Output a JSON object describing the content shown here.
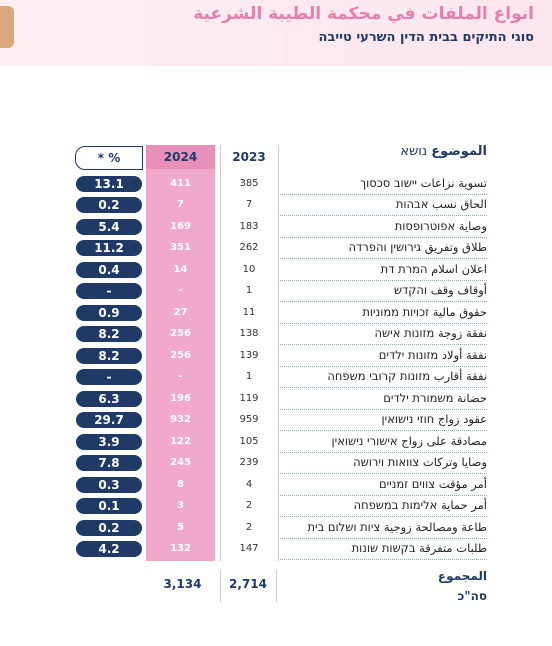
{
  "header": {
    "title": "انواع الملفات في محكمة الطيبة الشرعية",
    "subtitle": "סוגי התיקים בבית הדין השרעי טייבה"
  },
  "table": {
    "columns": [
      "* %",
      "2024",
      "2023",
      "الموضوع",
      "נושא"
    ],
    "rows": [
      [
        "13.1",
        "411",
        "385",
        "تسوية نزاعات יישוב סכסוך"
      ],
      [
        "0.2",
        "7",
        "7",
        "الحاق نسب אבהות"
      ],
      [
        "5.4",
        "169",
        "183",
        "وصاية אפוטרופסות"
      ],
      [
        "11.2",
        "351",
        "262",
        "طلاق وتفريق גירושין והפרדה"
      ],
      [
        "0.4",
        "14",
        "10",
        "اعلان اسلام המרת דת"
      ],
      [
        "-",
        "-",
        "1",
        "أوقاف وقف והקדש"
      ],
      [
        "0.9",
        "27",
        "11",
        "حقوق مالية זכויות ממוניות"
      ],
      [
        "8.2",
        "256",
        "138",
        "نفقة زوجة מזונות אישה"
      ],
      [
        "8.2",
        "256",
        "139",
        "نفقة أولاد מזונות ילדים"
      ],
      [
        "-",
        "-",
        "1",
        "نفقة أقارب מזונות קרובי משפחה"
      ],
      [
        "6.3",
        "196",
        "119",
        "حضانة משמורת ילדים"
      ],
      [
        "29.7",
        "932",
        "959",
        "عقود زواج חוזי נישואין"
      ],
      [
        "3.9",
        "122",
        "105",
        "مصادقة على زواج אישורי נישואין"
      ],
      [
        "7.8",
        "245",
        "239",
        "وصايا وتركات צוואות וירושה"
      ],
      [
        "0.3",
        "8",
        "4",
        "أمر مؤقت צווים זמניים"
      ],
      [
        "0.1",
        "3",
        "2",
        "أمر حماية אלימות במשפחה"
      ],
      [
        "0.2",
        "5",
        "2",
        "طاعة ومصالحة زوجية ציות ושלום בית"
      ],
      [
        "4.2",
        "132",
        "147",
        "طلبات متفرقة בקשות שונות"
      ]
    ],
    "total": {
      "label_ar": "المجموع",
      "label_he": "סה\"כ",
      "2024": "3,134",
      "2023": "2,714"
    }
  }
}
